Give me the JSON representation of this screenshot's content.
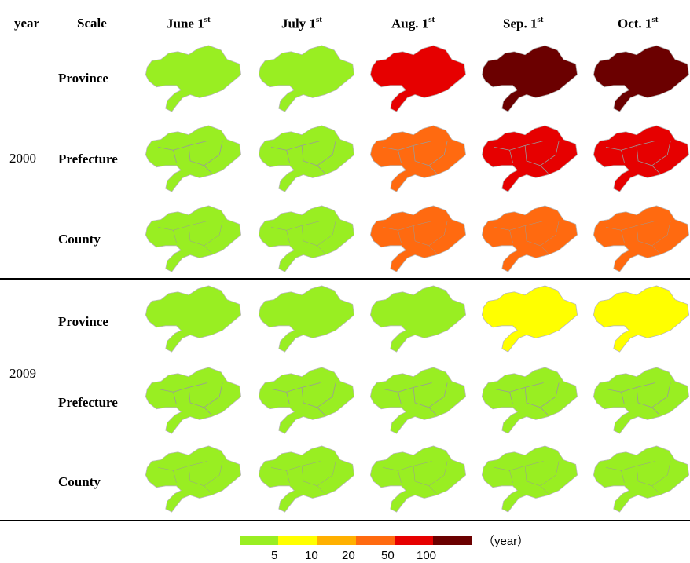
{
  "header": {
    "year_col": "year",
    "scale_col": "Scale",
    "dates": [
      {
        "label": "June 1",
        "sup": "st"
      },
      {
        "label": "July 1",
        "sup": "st"
      },
      {
        "label": "Aug. 1",
        "sup": "st"
      },
      {
        "label": "Sep. 1",
        "sup": "st"
      },
      {
        "label": "Oct. 1",
        "sup": "st"
      }
    ]
  },
  "scales": [
    "Province",
    "Prefecture",
    "County"
  ],
  "years": [
    "2000",
    "2009"
  ],
  "legend": {
    "unit": "（year）",
    "ticks": [
      "5",
      "10",
      "20",
      "50",
      "100"
    ],
    "colors": [
      "#99ee22",
      "#ffff00",
      "#ffb000",
      "#ff6a10",
      "#e60000",
      "#6b0000"
    ]
  },
  "map_grid": {
    "2000": {
      "Province": [
        "#99ee22",
        "#99ee22",
        "#e60000",
        "#6b0000",
        "#6b0000"
      ],
      "Prefecture": [
        "#99ee22",
        "#99ee22",
        "#ff6a10",
        "#e60000",
        "#e60000"
      ],
      "County": [
        "#99ee22",
        "#99ee22",
        "#ff6a10",
        "#ff6a10",
        "#ff6a10"
      ]
    },
    "2009": {
      "Province": [
        "#99ee22",
        "#99ee22",
        "#99ee22",
        "#ffff00",
        "#ffff00"
      ],
      "Prefecture": [
        "#99ee22",
        "#99ee22",
        "#99ee22",
        "#99ee22",
        "#99ee22"
      ],
      "County": [
        "#99ee22",
        "#99ee22",
        "#99ee22",
        "#99ee22",
        "#99ee22"
      ]
    }
  }
}
